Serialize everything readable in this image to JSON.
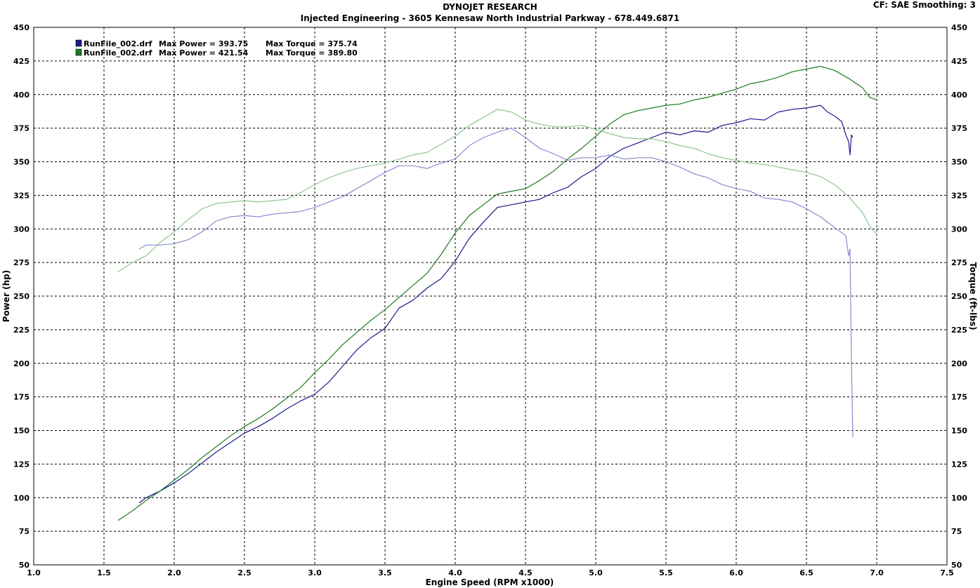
{
  "header": {
    "title": "DYNOJET RESEARCH",
    "subtitle": "Injected Engineering - 3605 Kennesaw North Industrial Parkway - 678.449.6871",
    "cf_info": "CF: SAE  Smoothing: 3"
  },
  "colors": {
    "run1_power": "#1a1a8c",
    "run1_torque": "#8a8ad0",
    "run2_power": "#1f7a1f",
    "run2_torque": "#8fc68f",
    "grid": "#000000"
  },
  "chart_data": {
    "type": "line",
    "xlabel": "Engine Speed (RPM x1000)",
    "ylabel": "Power (hp)",
    "ylabel_right": "Torque (ft-lbs)",
    "xlim": [
      1.0,
      7.5
    ],
    "ylim": [
      50,
      450
    ],
    "ylim_right": [
      50,
      450
    ],
    "x_ticks": [
      "1.0",
      "1.5",
      "2.0",
      "2.5",
      "3.0",
      "3.5",
      "4.0",
      "4.5",
      "5.0",
      "5.5",
      "6.0",
      "6.5",
      "7.0",
      "7.5"
    ],
    "y_ticks": [
      "50",
      "75",
      "100",
      "125",
      "150",
      "175",
      "200",
      "225",
      "250",
      "275",
      "300",
      "325",
      "350",
      "375",
      "400",
      "425",
      "450"
    ],
    "grid": true,
    "legend_position": "top-left",
    "legend": [
      {
        "file": "RunFile_002.drf",
        "power_label": "Max Power = 393.75",
        "torque_label": "Max Torque = 375.74",
        "color": "#1a1a8c"
      },
      {
        "file": "RunFile_002.drf",
        "power_label": "Max Power = 421.54",
        "torque_label": "Max Torque = 389.80",
        "color": "#1f7a1f"
      }
    ],
    "series": [
      {
        "kind": "power",
        "run": 1,
        "x": [
          1.75,
          1.8,
          1.9,
          2.0,
          2.1,
          2.2,
          2.3,
          2.4,
          2.5,
          2.6,
          2.7,
          2.8,
          2.9,
          3.0,
          3.1,
          3.2,
          3.3,
          3.4,
          3.5,
          3.6,
          3.7,
          3.8,
          3.9,
          4.0,
          4.1,
          4.2,
          4.3,
          4.4,
          4.5,
          4.6,
          4.7,
          4.8,
          4.9,
          5.0,
          5.1,
          5.2,
          5.3,
          5.4,
          5.5,
          5.6,
          5.7,
          5.8,
          5.9,
          6.0,
          6.1,
          6.2,
          6.3,
          6.4,
          6.5,
          6.6,
          6.65,
          6.7,
          6.75,
          6.78,
          6.8,
          6.81,
          6.82,
          6.83
        ],
        "y": [
          96,
          100,
          105,
          111,
          118,
          126,
          134,
          141,
          148,
          153,
          159,
          166,
          172,
          177,
          186,
          198,
          210,
          219,
          226,
          241,
          247,
          256,
          263,
          276,
          293,
          305,
          316,
          318,
          320,
          322,
          327,
          331,
          339,
          345,
          354,
          360,
          364,
          368,
          372,
          370,
          373,
          372,
          377,
          379,
          382,
          381,
          387,
          389,
          390,
          392,
          387,
          384,
          380,
          370,
          365,
          355,
          370,
          368
        ]
      },
      {
        "kind": "torque",
        "run": 1,
        "x": [
          1.75,
          1.8,
          1.9,
          2.0,
          2.1,
          2.2,
          2.3,
          2.4,
          2.5,
          2.6,
          2.7,
          2.8,
          2.9,
          3.0,
          3.1,
          3.2,
          3.3,
          3.4,
          3.5,
          3.6,
          3.7,
          3.8,
          3.9,
          4.0,
          4.1,
          4.2,
          4.3,
          4.4,
          4.5,
          4.6,
          4.7,
          4.8,
          4.9,
          5.0,
          5.1,
          5.2,
          5.3,
          5.4,
          5.5,
          5.6,
          5.7,
          5.8,
          5.9,
          6.0,
          6.1,
          6.2,
          6.3,
          6.4,
          6.5,
          6.6,
          6.7,
          6.78,
          6.8,
          6.81,
          6.82,
          6.83
        ],
        "y": [
          285,
          288,
          288,
          289,
          292,
          298,
          306,
          309,
          310,
          309,
          311,
          312,
          313,
          316,
          320,
          324,
          330,
          336,
          342,
          347,
          347,
          345,
          349,
          352,
          362,
          368,
          372,
          375,
          368,
          360,
          356,
          351,
          353,
          353,
          355,
          352,
          353,
          353,
          350,
          346,
          341,
          338,
          333,
          330,
          328,
          323,
          322,
          320,
          315,
          309,
          301,
          295,
          280,
          285,
          200,
          145
        ]
      },
      {
        "kind": "power",
        "run": 2,
        "x": [
          1.6,
          1.7,
          1.8,
          1.9,
          2.0,
          2.1,
          2.2,
          2.3,
          2.4,
          2.5,
          2.6,
          2.7,
          2.8,
          2.9,
          3.0,
          3.1,
          3.2,
          3.3,
          3.4,
          3.5,
          3.6,
          3.7,
          3.8,
          3.9,
          4.0,
          4.1,
          4.2,
          4.3,
          4.4,
          4.5,
          4.6,
          4.7,
          4.8,
          4.9,
          5.0,
          5.1,
          5.2,
          5.3,
          5.4,
          5.5,
          5.6,
          5.7,
          5.8,
          5.9,
          6.0,
          6.1,
          6.2,
          6.3,
          6.4,
          6.5,
          6.6,
          6.7,
          6.8,
          6.9,
          6.95,
          7.0
        ],
        "y": [
          83,
          90,
          98,
          105,
          113,
          121,
          130,
          138,
          146,
          153,
          159,
          166,
          174,
          182,
          193,
          203,
          214,
          223,
          232,
          240,
          249,
          258,
          267,
          281,
          297,
          310,
          318,
          326,
          328,
          330,
          336,
          343,
          352,
          360,
          369,
          378,
          385,
          388,
          390,
          392,
          393,
          396,
          398,
          401,
          404,
          408,
          410,
          413,
          417,
          419,
          421,
          418,
          412,
          405,
          398,
          396
        ]
      },
      {
        "kind": "torque",
        "run": 2,
        "x": [
          1.6,
          1.7,
          1.8,
          1.9,
          2.0,
          2.1,
          2.2,
          2.3,
          2.4,
          2.5,
          2.6,
          2.7,
          2.8,
          2.9,
          3.0,
          3.1,
          3.2,
          3.3,
          3.4,
          3.5,
          3.6,
          3.7,
          3.8,
          3.9,
          4.0,
          4.1,
          4.2,
          4.3,
          4.4,
          4.5,
          4.6,
          4.7,
          4.8,
          4.9,
          5.0,
          5.1,
          5.2,
          5.3,
          5.4,
          5.5,
          5.6,
          5.7,
          5.8,
          5.9,
          6.0,
          6.1,
          6.2,
          6.3,
          6.4,
          6.5,
          6.6,
          6.7,
          6.8,
          6.9,
          6.95,
          7.0
        ],
        "y": [
          268,
          275,
          280,
          290,
          298,
          307,
          315,
          319,
          320,
          321,
          320,
          321,
          322,
          327,
          333,
          338,
          342,
          345,
          347,
          349,
          352,
          355,
          357,
          363,
          369,
          377,
          383,
          389,
          387,
          381,
          378,
          376,
          376,
          377,
          374,
          371,
          368,
          367,
          367,
          365,
          362,
          360,
          356,
          353,
          351,
          349,
          348,
          346,
          344,
          342,
          339,
          333,
          324,
          312,
          302,
          296
        ]
      }
    ]
  }
}
